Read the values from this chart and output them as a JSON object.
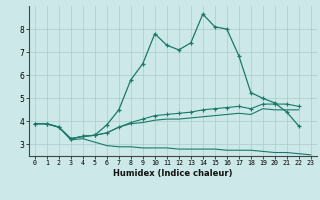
{
  "title": "",
  "xlabel": "Humidex (Indice chaleur)",
  "background_color": "#cce8e8",
  "grid_color": "#aacccc",
  "line_color": "#1a7a6a",
  "x_values": [
    0,
    1,
    2,
    3,
    4,
    5,
    6,
    7,
    8,
    9,
    10,
    11,
    12,
    13,
    14,
    15,
    16,
    17,
    18,
    19,
    20,
    21,
    22,
    23
  ],
  "line1": [
    3.9,
    3.9,
    3.75,
    3.25,
    3.35,
    3.4,
    3.85,
    4.5,
    5.8,
    6.5,
    7.8,
    7.3,
    7.1,
    7.4,
    8.65,
    8.1,
    8.0,
    6.85,
    5.25,
    5.0,
    4.8,
    4.4,
    3.8,
    null
  ],
  "line2": [
    3.9,
    3.9,
    3.75,
    3.25,
    3.35,
    3.4,
    3.5,
    3.75,
    3.95,
    4.1,
    4.25,
    4.3,
    4.35,
    4.4,
    4.5,
    4.55,
    4.6,
    4.65,
    4.55,
    4.75,
    4.75,
    4.75,
    4.65,
    null
  ],
  "line3": [
    3.9,
    3.9,
    3.75,
    3.25,
    3.35,
    3.4,
    3.5,
    3.75,
    3.9,
    3.95,
    4.05,
    4.1,
    4.1,
    4.15,
    4.2,
    4.25,
    4.3,
    4.35,
    4.3,
    4.55,
    4.5,
    4.5,
    4.5,
    null
  ],
  "line4": [
    3.9,
    3.9,
    3.75,
    3.2,
    3.25,
    3.1,
    2.95,
    2.9,
    2.9,
    2.85,
    2.85,
    2.85,
    2.8,
    2.8,
    2.8,
    2.8,
    2.75,
    2.75,
    2.75,
    2.7,
    2.65,
    2.65,
    2.6,
    2.55
  ],
  "ylim": [
    2.5,
    9.0
  ],
  "yticks": [
    3,
    4,
    5,
    6,
    7,
    8
  ],
  "xticks": [
    0,
    1,
    2,
    3,
    4,
    5,
    6,
    7,
    8,
    9,
    10,
    11,
    12,
    13,
    14,
    15,
    16,
    17,
    18,
    19,
    20,
    21,
    22,
    23
  ]
}
